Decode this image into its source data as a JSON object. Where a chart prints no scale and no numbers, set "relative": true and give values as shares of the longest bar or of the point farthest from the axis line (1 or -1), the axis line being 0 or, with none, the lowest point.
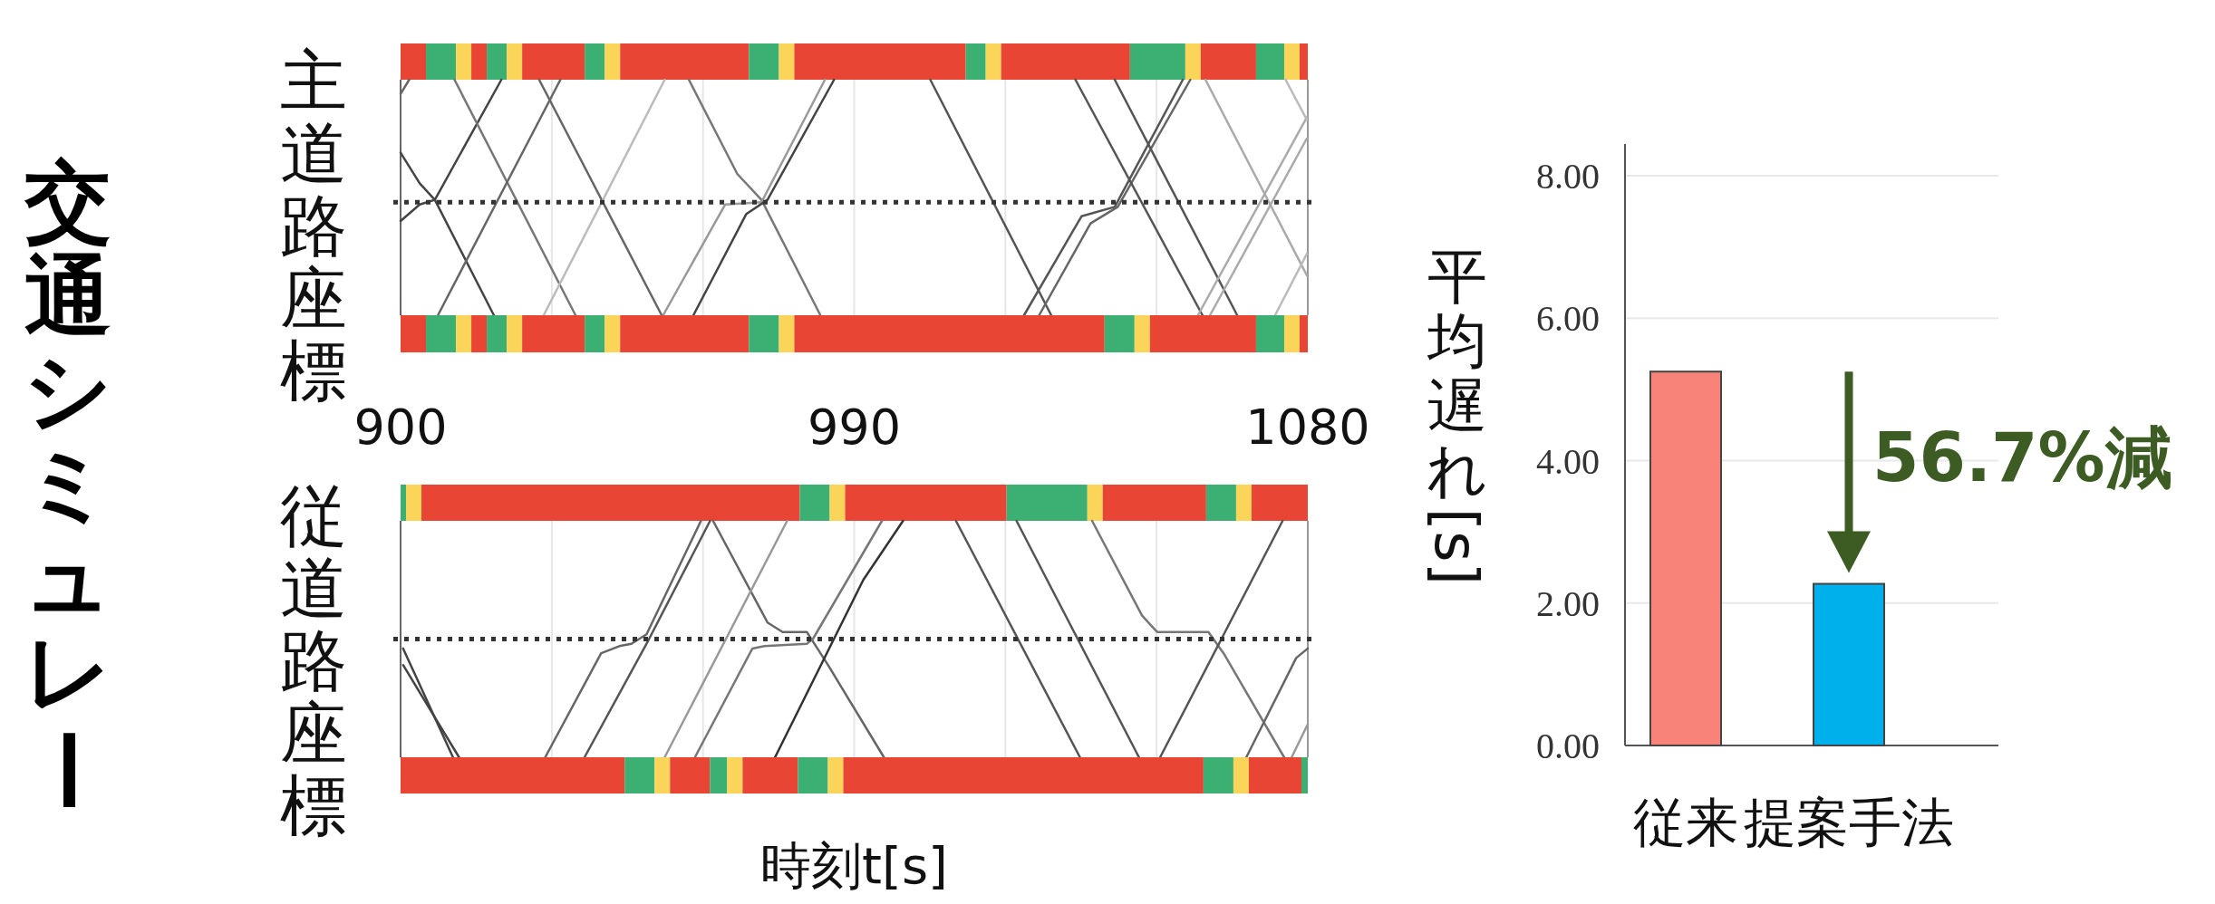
{
  "chart_data": [
    {
      "type": "other",
      "title": "交通シミュレー"
    },
    {
      "type": "bar",
      "orientation": "horizontal",
      "stacked": true,
      "relative": true,
      "categories": [
        null
      ],
      "series": [
        {
          "color": "#e84535",
          "values": [
            0.028
          ]
        },
        {
          "color": "#3cb073",
          "values": [
            0.033
          ]
        },
        {
          "color": "#fbd45a",
          "values": [
            0.017
          ]
        },
        {
          "color": "#e84535",
          "values": [
            0.017
          ]
        },
        {
          "color": "#3cb073",
          "values": [
            0.022
          ]
        },
        {
          "color": "#fbd45a",
          "values": [
            0.017
          ]
        },
        {
          "color": "#e84535",
          "values": [
            0.069
          ]
        },
        {
          "color": "#3cb073",
          "values": [
            0.022
          ]
        },
        {
          "color": "#fbd45a",
          "values": [
            0.017
          ]
        },
        {
          "color": "#e84535",
          "values": [
            0.142
          ]
        },
        {
          "color": "#3cb073",
          "values": [
            0.033
          ]
        },
        {
          "color": "#fbd45a",
          "values": [
            0.017
          ]
        },
        {
          "color": "#e84535",
          "values": [
            0.189
          ]
        },
        {
          "color": "#3cb073",
          "values": [
            0.022
          ]
        },
        {
          "color": "#fbd45a",
          "values": [
            0.017
          ]
        },
        {
          "color": "#e84535",
          "values": [
            0.142
          ]
        },
        {
          "color": "#3cb073",
          "values": [
            0.061
          ]
        },
        {
          "color": "#fbd45a",
          "values": [
            0.017
          ]
        },
        {
          "color": "#e84535",
          "values": [
            0.061
          ]
        },
        {
          "color": "#3cb073",
          "values": [
            0.031
          ]
        },
        {
          "color": "#fbd45a",
          "values": [
            0.017
          ]
        },
        {
          "color": "#e84535",
          "values": [
            0.009
          ]
        }
      ]
    },
    {
      "type": "line",
      "relative": true,
      "ylabel": "主道路座標",
      "xlim": [
        900,
        1080
      ],
      "xticks": [
        900,
        {
          "value": 930,
          "label": null
        },
        {
          "value": 960,
          "label": null
        },
        990,
        {
          "value": 1020,
          "label": null
        },
        {
          "value": 1050,
          "label": null
        },
        1080
      ],
      "tick_labels": "x",
      "grid": "x",
      "ref_lines": [
        {
          "axis": "y",
          "value": 0.48,
          "color": "#333333",
          "line_style": "dotted"
        }
      ],
      "series": [
        {
          "color": "#666666",
          "x": [
            900,
            901.7
          ],
          "values": [
            0.94,
            1
          ]
        },
        {
          "color": "#444444",
          "x": [
            900,
            903.8,
            906.8,
            918.5
          ],
          "values": [
            0.69,
            0.56,
            0.49,
            0
          ]
        },
        {
          "color": "#444444",
          "x": [
            900,
            903.8,
            906.8,
            920
          ],
          "values": [
            0.4,
            0.47,
            0.49,
            1
          ]
        },
        {
          "color": "#777777",
          "x": [
            910.7,
            934.7
          ],
          "values": [
            1,
            0
          ]
        },
        {
          "color": "#666666",
          "x": [
            907.4,
            931.7
          ],
          "values": [
            0,
            1
          ]
        },
        {
          "color": "#666666",
          "x": [
            927.5,
            951.8
          ],
          "values": [
            1,
            0
          ]
        },
        {
          "color": "#bbbbbb",
          "x": [
            928.4,
            952.4
          ],
          "values": [
            0,
            1
          ]
        },
        {
          "color": "#777777",
          "x": [
            957.2,
            966.8,
            971.6,
            983.3
          ],
          "values": [
            1,
            0.6,
            0.49,
            0
          ]
        },
        {
          "color": "#999999",
          "x": [
            952.1,
            964.4,
            971.6,
            984.2
          ],
          "values": [
            0,
            0.47,
            0.48,
            1
          ]
        },
        {
          "color": "#444444",
          "x": [
            958.1,
            968.6,
            972.8,
            986
          ],
          "values": [
            0,
            0.43,
            0.49,
            1
          ]
        },
        {
          "color": "#555555",
          "x": [
            1005.1,
            1029.1
          ],
          "values": [
            1,
            0
          ]
        },
        {
          "color": "#555555",
          "x": [
            1023.7,
            1035.1,
            1041.7,
            1055.2
          ],
          "values": [
            0,
            0.42,
            0.46,
            1
          ]
        },
        {
          "color": "#666666",
          "x": [
            1026.7,
            1036.9,
            1042.3,
            1056.7
          ],
          "values": [
            0,
            0.39,
            0.46,
            1
          ]
        },
        {
          "color": "#555555",
          "x": [
            1033.9,
            1059.1
          ],
          "values": [
            1,
            0
          ]
        },
        {
          "color": "#555555",
          "x": [
            1041.7,
            1066
          ],
          "values": [
            1,
            0
          ]
        },
        {
          "color": "#aaaaaa",
          "x": [
            1058.2,
            1079.8
          ],
          "values": [
            0,
            0.84
          ]
        },
        {
          "color": "#aaaaaa",
          "x": [
            1059.7,
            1079.8
          ],
          "values": [
            1,
            0.17
          ]
        },
        {
          "color": "#aaaaaa",
          "x": [
            1060.6,
            1079.8
          ],
          "values": [
            0,
            0.75
          ]
        },
        {
          "color": "#bbbbbb",
          "x": [
            1075.6,
            1079.8
          ],
          "values": [
            1,
            0.83
          ]
        },
        {
          "color": "#bbbbbb",
          "x": [
            1073.5,
            1079.8
          ],
          "values": [
            0,
            0.26
          ]
        }
      ]
    },
    {
      "type": "bar",
      "orientation": "horizontal",
      "stacked": true,
      "relative": true,
      "categories": [
        null
      ],
      "series": [
        {
          "color": "#e84535",
          "values": [
            0.028
          ]
        },
        {
          "color": "#3cb073",
          "values": [
            0.033
          ]
        },
        {
          "color": "#fbd45a",
          "values": [
            0.017
          ]
        },
        {
          "color": "#e84535",
          "values": [
            0.017
          ]
        },
        {
          "color": "#3cb073",
          "values": [
            0.022
          ]
        },
        {
          "color": "#fbd45a",
          "values": [
            0.017
          ]
        },
        {
          "color": "#e84535",
          "values": [
            0.069
          ]
        },
        {
          "color": "#3cb073",
          "values": [
            0.022
          ]
        },
        {
          "color": "#fbd45a",
          "values": [
            0.017
          ]
        },
        {
          "color": "#e84535",
          "values": [
            0.142
          ]
        },
        {
          "color": "#3cb073",
          "values": [
            0.033
          ]
        },
        {
          "color": "#fbd45a",
          "values": [
            0.017
          ]
        },
        {
          "color": "#e84535",
          "values": [
            0.342
          ]
        },
        {
          "color": "#3cb073",
          "values": [
            0.033
          ]
        },
        {
          "color": "#fbd45a",
          "values": [
            0.017
          ]
        },
        {
          "color": "#e84535",
          "values": [
            0.117
          ]
        },
        {
          "color": "#3cb073",
          "values": [
            0.031
          ]
        },
        {
          "color": "#fbd45a",
          "values": [
            0.017
          ]
        },
        {
          "color": "#e84535",
          "values": [
            0.009
          ]
        }
      ]
    },
    {
      "type": "bar",
      "orientation": "horizontal",
      "stacked": true,
      "relative": true,
      "categories": [
        null
      ],
      "series": [
        {
          "color": "#3cb073",
          "values": [
            0.006
          ]
        },
        {
          "color": "#fbd45a",
          "values": [
            0.017
          ]
        },
        {
          "color": "#e84535",
          "values": [
            0.417
          ]
        },
        {
          "color": "#3cb073",
          "values": [
            0.033
          ]
        },
        {
          "color": "#fbd45a",
          "values": [
            0.017
          ]
        },
        {
          "color": "#e84535",
          "values": [
            0.178
          ]
        },
        {
          "color": "#3cb073",
          "values": [
            0.089
          ]
        },
        {
          "color": "#fbd45a",
          "values": [
            0.017
          ]
        },
        {
          "color": "#e84535",
          "values": [
            0.114
          ]
        },
        {
          "color": "#3cb073",
          "values": [
            0.033
          ]
        },
        {
          "color": "#fbd45a",
          "values": [
            0.017
          ]
        },
        {
          "color": "#e84535",
          "values": [
            0.062
          ]
        }
      ]
    },
    {
      "type": "line",
      "relative": true,
      "ylabel": "従道路座標",
      "xlabel": "時刻t[s]",
      "xlim": [
        900,
        1080
      ],
      "xticks": [
        900,
        {
          "value": 930,
          "label": null
        },
        {
          "value": 960,
          "label": null
        },
        990,
        {
          "value": 1020,
          "label": null
        },
        {
          "value": 1050,
          "label": null
        },
        1080
      ],
      "tick_labels": false,
      "grid": "x",
      "ref_lines": [
        {
          "axis": "y",
          "value": 0.5,
          "color": "#333333",
          "line_style": "dotted"
        }
      ],
      "series": [
        {
          "color": "#444444",
          "x": [
            900.5,
            910.4
          ],
          "values": [
            0.46,
            0
          ]
        },
        {
          "color": "#444444",
          "x": [
            900.5,
            911.6
          ],
          "values": [
            0.39,
            0
          ]
        },
        {
          "color": "#666666",
          "x": [
            928.7,
            939.8,
            943.4,
            945.8,
            948.8,
            959.6
          ],
          "values": [
            0,
            0.44,
            0.47,
            0.48,
            0.52,
            1
          ]
        },
        {
          "color": "#555555",
          "x": [
            936.5,
            948.8,
            961.4
          ],
          "values": [
            0,
            0.48,
            1
          ]
        },
        {
          "color": "#666666",
          "x": [
            962,
            972.8,
            975.8,
            980.6,
            984.8,
            995.9
          ],
          "values": [
            1,
            0.57,
            0.53,
            0.53,
            0.39,
            0
          ]
        },
        {
          "color": "#999999",
          "x": [
            952.4,
            976.7
          ],
          "values": [
            0,
            1
          ]
        },
        {
          "color": "#777777",
          "x": [
            958.4,
            969.8,
            972.2,
            980.6,
            981.8,
            995.5
          ],
          "values": [
            0,
            0.46,
            0.47,
            0.48,
            0.5,
            1
          ]
        },
        {
          "color": "#333333",
          "x": [
            974.3,
            991.8,
            999.7
          ],
          "values": [
            0,
            0.75,
            1
          ]
        },
        {
          "color": "#555555",
          "x": [
            1010.2,
            1034.8
          ],
          "values": [
            1,
            0
          ]
        },
        {
          "color": "#555555",
          "x": [
            1022.2,
            1046.5
          ],
          "values": [
            1,
            0
          ]
        },
        {
          "color": "#777777",
          "x": [
            1037.2,
            1047.1,
            1050.1,
            1060.3,
            1063.3,
            1075.3
          ],
          "values": [
            1,
            0.6,
            0.53,
            0.53,
            0.44,
            0
          ]
        },
        {
          "color": "#555555",
          "x": [
            1050.7,
            1075
          ],
          "values": [
            0,
            1
          ]
        },
        {
          "color": "#666666",
          "x": [
            1067.8,
            1077.7,
            1080
          ],
          "values": [
            0,
            0.42,
            0.46
          ]
        },
        {
          "color": "#999999",
          "x": [
            1076.8,
            1080
          ],
          "values": [
            0,
            0.14
          ]
        }
      ]
    },
    {
      "type": "bar",
      "orientation": "horizontal",
      "stacked": true,
      "relative": true,
      "categories": [
        null
      ],
      "series": [
        {
          "color": "#e84535",
          "values": [
            0.247
          ]
        },
        {
          "color": "#3cb073",
          "values": [
            0.033
          ]
        },
        {
          "color": "#fbd45a",
          "values": [
            0.017
          ]
        },
        {
          "color": "#e84535",
          "values": [
            0.044
          ]
        },
        {
          "color": "#3cb073",
          "values": [
            0.019
          ]
        },
        {
          "color": "#fbd45a",
          "values": [
            0.017
          ]
        },
        {
          "color": "#e84535",
          "values": [
            0.061
          ]
        },
        {
          "color": "#3cb073",
          "values": [
            0.033
          ]
        },
        {
          "color": "#fbd45a",
          "values": [
            0.017
          ]
        },
        {
          "color": "#e84535",
          "values": [
            0.397
          ]
        },
        {
          "color": "#3cb073",
          "values": [
            0.033
          ]
        },
        {
          "color": "#fbd45a",
          "values": [
            0.017
          ]
        },
        {
          "color": "#e84535",
          "values": [
            0.058
          ]
        },
        {
          "color": "#3cb073",
          "values": [
            0.007
          ]
        }
      ]
    },
    {
      "type": "bar",
      "categories": [
        "従来",
        "提案手法"
      ],
      "values": [
        5.25,
        2.27
      ],
      "colors": [
        "#f88379",
        "#00b0eb"
      ],
      "ylabel": "平均遅れ[s]",
      "ylim": [
        0,
        8
      ],
      "yticks": [
        {
          "value": 0,
          "label": "0.00"
        },
        {
          "value": 2,
          "label": "2.00"
        },
        {
          "value": 4,
          "label": "4.00"
        },
        {
          "value": 6,
          "label": "6.00"
        },
        {
          "value": 8,
          "label": "8.00"
        }
      ],
      "grid": "y",
      "annotations": [
        "56.7%減"
      ]
    }
  ]
}
